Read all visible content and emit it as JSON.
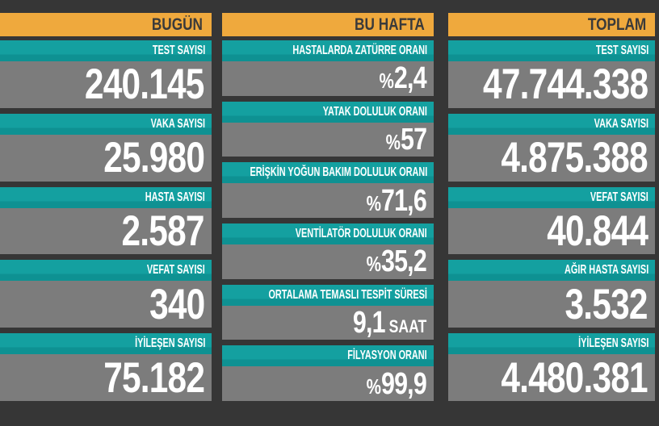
{
  "title": "COVID-19 gunluk durum panosu",
  "theme": {
    "header_bg": "#efa93d",
    "header_text": "#3a3a3a",
    "label_bg": "#109a9a",
    "value_bg": "#7c7c7c",
    "value_text": "#ffffff",
    "page_bg": "#363636"
  },
  "columns": [
    {
      "id": "bugun",
      "header": "BUGÜN",
      "items": [
        {
          "label": "TEST SAYISI",
          "value": "240.145"
        },
        {
          "label": "VAKA SAYISI",
          "value": "25.980"
        },
        {
          "label": "HASTA SAYISI",
          "value": "2.587"
        },
        {
          "label": "VEFAT SAYISI",
          "value": "340"
        },
        {
          "label": "İYİLEŞEN SAYISI",
          "value": "75.182"
        }
      ]
    },
    {
      "id": "bu-hafta",
      "header": "BU HAFTA",
      "items": [
        {
          "label": "HASTALARDA ZATÜRRE ORANI",
          "prefix": "%",
          "value": "2,4"
        },
        {
          "label": "YATAK DOLULUK ORANI",
          "prefix": "%",
          "value": "57"
        },
        {
          "label": "ERİŞKİN YOĞUN BAKIM DOLULUK ORANI",
          "prefix": "%",
          "value": "71,6"
        },
        {
          "label": "VENTİLATÖR DOLULUK ORANI",
          "prefix": "%",
          "value": "35,2"
        },
        {
          "label": "ORTALAMA TEMASLI TESPİT SÜRESİ",
          "value": "9,1",
          "suffix": " SAAT"
        },
        {
          "label": "FİLYASYON ORANI",
          "prefix": "%",
          "value": "99,9"
        }
      ]
    },
    {
      "id": "toplam",
      "header": "TOPLAM",
      "items": [
        {
          "label": "TEST SAYISI",
          "value": "47.744.338"
        },
        {
          "label": "VAKA SAYISI",
          "value": "4.875.388"
        },
        {
          "label": "VEFAT SAYISI",
          "value": "40.844"
        },
        {
          "label": "AĞIR HASTA SAYISI",
          "value": "3.532"
        },
        {
          "label": "İYİLEŞEN SAYISI",
          "value": "4.480.381"
        }
      ]
    }
  ]
}
